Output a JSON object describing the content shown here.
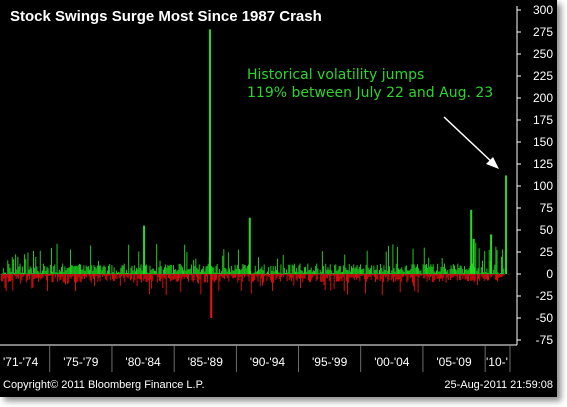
{
  "chart_data": {
    "type": "bar",
    "title": "Stock Swings Surge Most Since 1987 Crash",
    "annotation": [
      "Historical volatility jumps",
      "119% between July 22 and Aug. 23"
    ],
    "ylim": [
      -75,
      300
    ],
    "y_ticks": [
      300,
      275,
      250,
      225,
      200,
      175,
      150,
      125,
      100,
      75,
      50,
      25,
      0,
      -25,
      -50,
      -75
    ],
    "x_range": [
      1971,
      2012
    ],
    "x_tick_labels": [
      "'71-'74",
      "'75-'79",
      "'80-'84",
      "'85-'89",
      "'90-'94",
      "'95-'99",
      "'00-'04",
      "'05-'09",
      "'10-'"
    ],
    "x_tick_boundaries": [
      1971,
      1975,
      1980,
      1985,
      1990,
      1995,
      2000,
      2005,
      2010
    ],
    "colors": {
      "positive": "#22dd22",
      "negative": "#ee1111",
      "background": "#000000",
      "text": "#ffffff",
      "annotation": "#2fd42f"
    },
    "notable_points": [
      {
        "x": 1987.8,
        "value": 278
      },
      {
        "x": 1987.9,
        "value": -50
      },
      {
        "x": 2011.6,
        "value": 112
      },
      {
        "x": 2008.8,
        "value": 73
      },
      {
        "x": 2009.0,
        "value": 40
      },
      {
        "x": 1991.0,
        "value": 64
      },
      {
        "x": 1982.5,
        "value": 55
      },
      {
        "x": 2010.4,
        "value": 45
      }
    ],
    "footer": {
      "copyright": "Copyright© 2011 Bloomberg Finance L.P.",
      "timestamp": "25-Aug-2011 21:59:08"
    }
  }
}
